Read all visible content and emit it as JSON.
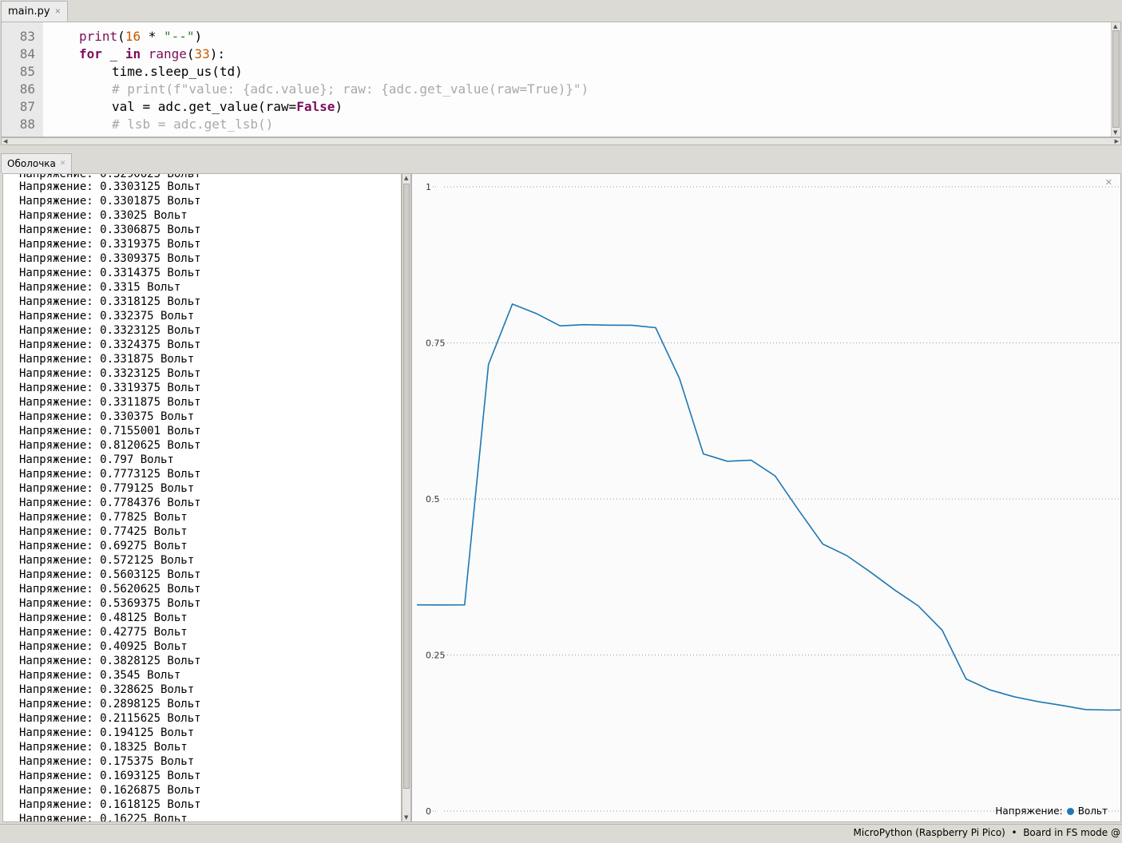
{
  "editor": {
    "tab_label": "main.py",
    "line_numbers": [
      "83",
      "84",
      "85",
      "86",
      "87",
      "88"
    ]
  },
  "shell": {
    "tab_label": "Оболочка",
    "lines": [
      "Напряжение: 0.3303125 Вольт",
      "Напряжение: 0.3301875 Вольт",
      "Напряжение: 0.33025 Вольт",
      "Напряжение: 0.3306875 Вольт",
      "Напряжение: 0.3319375 Вольт",
      "Напряжение: 0.3309375 Вольт",
      "Напряжение: 0.3314375 Вольт",
      "Напряжение: 0.3315 Вольт",
      "Напряжение: 0.3318125 Вольт",
      "Напряжение: 0.332375 Вольт",
      "Напряжение: 0.3323125 Вольт",
      "Напряжение: 0.3324375 Вольт",
      "Напряжение: 0.331875 Вольт",
      "Напряжение: 0.3323125 Вольт",
      "Напряжение: 0.3319375 Вольт",
      "Напряжение: 0.3311875 Вольт",
      "Напряжение: 0.330375 Вольт",
      "Напряжение: 0.7155001 Вольт",
      "Напряжение: 0.8120625 Вольт",
      "Напряжение: 0.797 Вольт",
      "Напряжение: 0.7773125 Вольт",
      "Напряжение: 0.779125 Вольт",
      "Напряжение: 0.7784376 Вольт",
      "Напряжение: 0.77825 Вольт",
      "Напряжение: 0.77425 Вольт",
      "Напряжение: 0.69275 Вольт",
      "Напряжение: 0.572125 Вольт",
      "Напряжение: 0.5603125 Вольт",
      "Напряжение: 0.5620625 Вольт",
      "Напряжение: 0.5369375 Вольт",
      "Напряжение: 0.48125 Вольт",
      "Напряжение: 0.42775 Вольт",
      "Напряжение: 0.40925 Вольт",
      "Напряжение: 0.3828125 Вольт",
      "Напряжение: 0.3545 Вольт",
      "Напряжение: 0.328625 Вольт",
      "Напряжение: 0.2898125 Вольт",
      "Напряжение: 0.2115625 Вольт",
      "Напряжение: 0.194125 Вольт",
      "Напряжение: 0.18325 Вольт",
      "Напряжение: 0.175375 Вольт",
      "Напряжение: 0.1693125 Вольт",
      "Напряжение: 0.1626875 Вольт",
      "Напряжение: 0.1618125 Вольт",
      "Напряжение: 0.16225 Вольт"
    ]
  },
  "chart_data": {
    "type": "line",
    "ylim": [
      0,
      1
    ],
    "yticks": [
      "1",
      "0.75",
      "0.5",
      "0.25",
      "0"
    ],
    "ytick_values": [
      1,
      0.75,
      0.5,
      0.25,
      0
    ],
    "grid": true,
    "legend_position": "bottom-right",
    "legend_label": "Напряжение:",
    "series": [
      {
        "name": "Вольт",
        "color": "#1f77b4",
        "values": [
          0.3303,
          0.3302,
          0.3303,
          0.7155,
          0.8121,
          0.797,
          0.7773,
          0.7791,
          0.7784,
          0.7783,
          0.7743,
          0.6928,
          0.5721,
          0.5603,
          0.5621,
          0.5369,
          0.4813,
          0.4278,
          0.4093,
          0.3828,
          0.3545,
          0.3286,
          0.2898,
          0.2116,
          0.1941,
          0.1833,
          0.1754,
          0.1693,
          0.1627,
          0.1618,
          0.1623
        ]
      }
    ]
  },
  "status": {
    "text": "MicroPython (Raspberry Pi Pico)  •  Board in FS mode @"
  }
}
